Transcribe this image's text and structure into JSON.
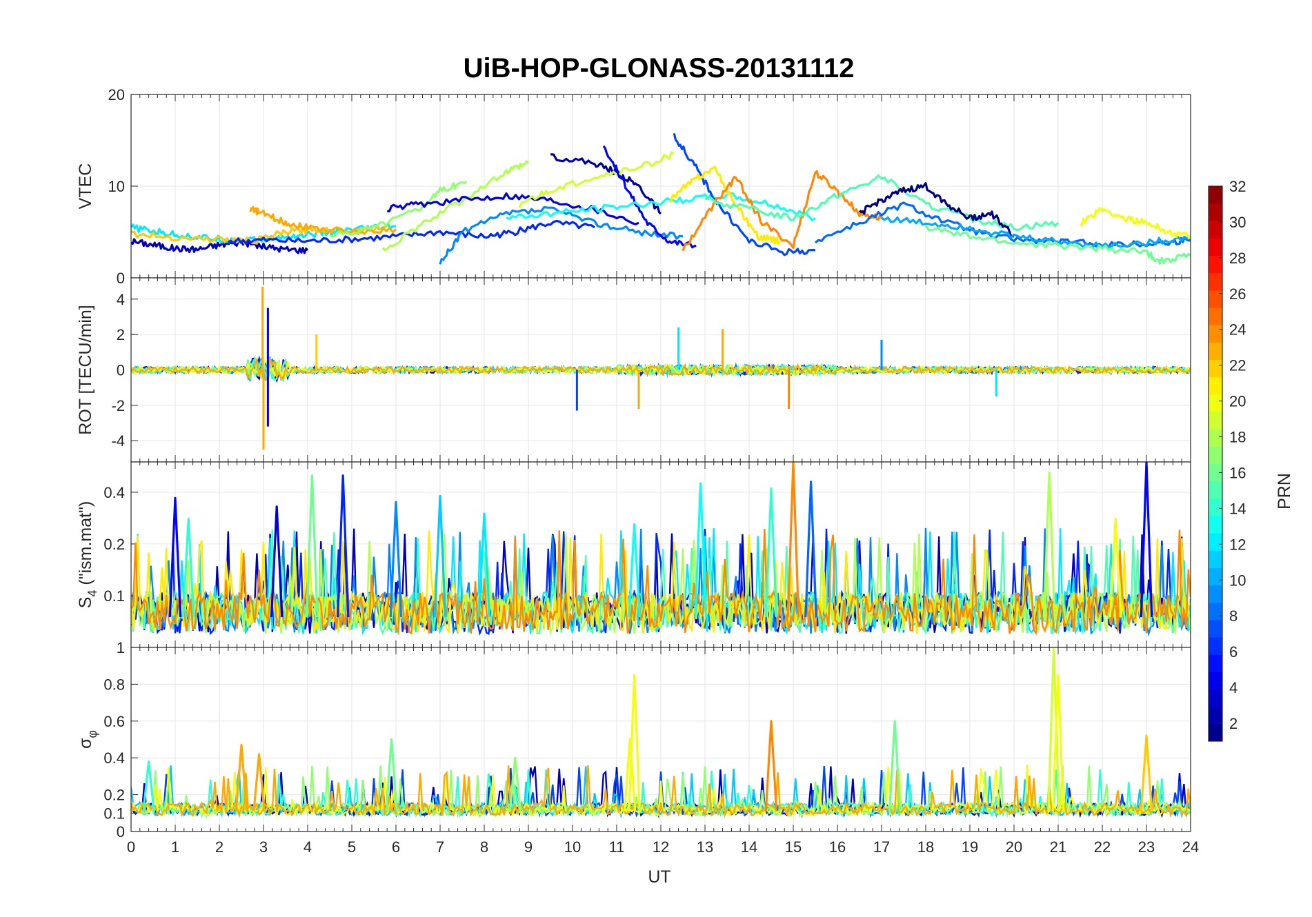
{
  "title": "UiB-HOP-GLONASS-20131112",
  "xlabel": "UT",
  "colorbar": {
    "label": "PRN",
    "colormap": "jet",
    "range": [
      1,
      32
    ],
    "tick_labels": [
      "2",
      "4",
      "6",
      "8",
      "10",
      "12",
      "14",
      "16",
      "18",
      "20",
      "22",
      "24",
      "26",
      "28",
      "30",
      "32"
    ]
  },
  "colors": {
    "axes": "#262626",
    "grid": "#e6e6e6",
    "background": "#ffffff"
  },
  "chart_data": [
    {
      "type": "line",
      "ylabel": "VTEC",
      "xlim": [
        0,
        24
      ],
      "ylim": [
        0,
        20
      ],
      "y_tick_labels": [
        "0",
        "10",
        "20"
      ],
      "x_tick_labels": [],
      "grid": true,
      "series": [
        {
          "prn": 3,
          "x": [
            0,
            0.5,
            1,
            1.5,
            2,
            2.5,
            3,
            3.5,
            4
          ],
          "y": [
            4,
            3.6,
            3.2,
            3.1,
            3.6,
            3.9,
            3.4,
            3.1,
            3.0
          ]
        },
        {
          "prn": 12,
          "x": [
            0,
            0.6,
            1.2,
            1.8,
            2.4,
            3,
            3.6,
            4.2,
            4.8,
            5.4,
            6
          ],
          "y": [
            5.5,
            5.0,
            4.6,
            4.3,
            4.1,
            4.2,
            4.5,
            4.8,
            5.1,
            5.4,
            5.6
          ]
        },
        {
          "prn": 22,
          "x": [
            0,
            1,
            2,
            2.8,
            3.5,
            4.2,
            5,
            5.8
          ],
          "y": [
            4.8,
            4.4,
            4.2,
            4.0,
            5.0,
            5.3,
            5.2,
            5.6
          ]
        },
        {
          "prn": 23,
          "x": [
            2.7,
            3,
            3.5,
            4,
            5,
            6
          ],
          "y": [
            7.5,
            7.0,
            6.0,
            5.5,
            5.0,
            5.3
          ]
        },
        {
          "prn": 6,
          "x": [
            2.2,
            3,
            4,
            5,
            6,
            7,
            8,
            8.7,
            9.5,
            10.5
          ],
          "y": [
            4.0,
            4.1,
            4.0,
            4.2,
            4.5,
            5.0,
            4.5,
            5.0,
            6.0,
            5.5
          ]
        },
        {
          "prn": 17,
          "x": [
            4.5,
            5.5,
            6.5,
            7,
            7.6
          ],
          "y": [
            4.5,
            5.5,
            7.5,
            9.5,
            10.5
          ]
        },
        {
          "prn": 18,
          "x": [
            5.7,
            6.5,
            7.5,
            8.5,
            9
          ],
          "y": [
            3.0,
            5.5,
            8.5,
            11.5,
            12.5
          ]
        },
        {
          "prn": 4,
          "x": [
            5.8,
            6.5,
            7.5,
            8.5,
            9.5,
            10.5,
            11.5
          ],
          "y": [
            7.5,
            8.0,
            8.5,
            9.0,
            8.5,
            7.5,
            6.0
          ]
        },
        {
          "prn": 9,
          "x": [
            7,
            7.5,
            8.5,
            9.5,
            10.5,
            11.5,
            12.5
          ],
          "y": [
            1.5,
            5.0,
            7.0,
            7.5,
            6.0,
            5.0,
            4.5
          ]
        },
        {
          "prn": 2,
          "x": [
            9.5,
            10.5,
            11,
            11.5,
            12
          ],
          "y": [
            13.3,
            12.5,
            11.5,
            10.0,
            7.0
          ]
        },
        {
          "prn": 19,
          "x": [
            8.8,
            9.5,
            10.5,
            11.5,
            12.3
          ],
          "y": [
            8.0,
            9.5,
            11.0,
            12.0,
            13.5
          ]
        },
        {
          "prn": 5,
          "x": [
            10.7,
            11.2,
            11.7,
            12.2,
            12.8
          ],
          "y": [
            14.5,
            10.0,
            6.0,
            4.0,
            3.5
          ]
        },
        {
          "prn": 13,
          "x": [
            8.5,
            9.5,
            10.5,
            11.5,
            12.5,
            13.5,
            14.5,
            15.5
          ],
          "y": [
            6.5,
            7.0,
            7.5,
            8.0,
            8.5,
            9.0,
            8.0,
            6.5
          ]
        },
        {
          "prn": 7,
          "x": [
            12.3,
            12.8,
            13.3,
            14,
            14.8,
            15.5
          ],
          "y": [
            15.5,
            12.0,
            8.0,
            4.0,
            2.8,
            3.0
          ]
        },
        {
          "prn": 21,
          "x": [
            12.2,
            12.7,
            13.2,
            13.7,
            14.2,
            14.7
          ],
          "y": [
            8.5,
            10.5,
            12.0,
            8.0,
            4.5,
            4.0
          ]
        },
        {
          "prn": 24,
          "x": [
            12.5,
            13.2,
            13.7,
            14.3,
            15,
            15.5,
            16,
            16.5,
            17
          ],
          "y": [
            3.0,
            8.0,
            11.0,
            6.0,
            3.5,
            11.5,
            9.5,
            7.0,
            6.5
          ]
        },
        {
          "prn": 15,
          "x": [
            13,
            14,
            15,
            16,
            17,
            18,
            19,
            20,
            21
          ],
          "y": [
            8.5,
            7.5,
            6.5,
            9.0,
            11.0,
            8.0,
            6.5,
            5.5,
            6.0
          ]
        },
        {
          "prn": 1,
          "x": [
            16.5,
            17,
            17.5,
            18,
            18.5,
            19,
            19.5,
            20
          ],
          "y": [
            7.0,
            8.5,
            9.5,
            10.0,
            8.0,
            6.5,
            7.0,
            4.5
          ]
        },
        {
          "prn": 8,
          "x": [
            15.5,
            16.5,
            17.5,
            18.5,
            19.5,
            20.5,
            21.5,
            22.5,
            23.5,
            24
          ],
          "y": [
            4.0,
            6.0,
            8.0,
            6.0,
            4.5,
            4.0,
            3.8,
            3.6,
            3.8,
            4.2
          ]
        },
        {
          "prn": 10,
          "x": [
            17,
            18,
            19,
            20,
            21,
            22,
            23,
            24
          ],
          "y": [
            6.5,
            6.0,
            5.5,
            4.5,
            4.0,
            3.5,
            3.8,
            4.5
          ]
        },
        {
          "prn": 16,
          "x": [
            18,
            19,
            20,
            21,
            22,
            23,
            23.3,
            24
          ],
          "y": [
            5.5,
            4.5,
            3.8,
            3.5,
            3.2,
            2.8,
            1.8,
            2.5
          ]
        },
        {
          "prn": 20,
          "x": [
            21.5,
            22,
            22.5,
            23,
            23.5,
            24
          ],
          "y": [
            6.0,
            7.5,
            6.5,
            6.0,
            5.0,
            4.5
          ]
        }
      ]
    },
    {
      "type": "line",
      "ylabel": "ROT [TECU/min]",
      "xlim": [
        0,
        24
      ],
      "ylim": [
        -5.2,
        5.2
      ],
      "y_tick_labels": [
        "-4",
        "-2",
        "0",
        "2",
        "4"
      ],
      "x_tick_labels": [],
      "grid": true,
      "baseline": 0,
      "spikes": [
        {
          "prn": 23,
          "x": 2.98,
          "y": 4.7
        },
        {
          "prn": 23,
          "x": 3.0,
          "y": -4.5
        },
        {
          "prn": 4,
          "x": 3.1,
          "y": 3.5
        },
        {
          "prn": 4,
          "x": 3.1,
          "y": -3.2
        },
        {
          "prn": 22,
          "x": 4.2,
          "y": 2.0
        },
        {
          "prn": 7,
          "x": 10.1,
          "y": -2.3
        },
        {
          "prn": 12,
          "x": 12.4,
          "y": 2.4
        },
        {
          "prn": 23,
          "x": 13.4,
          "y": 2.3
        },
        {
          "prn": 23,
          "x": 11.5,
          "y": -2.2
        },
        {
          "prn": 24,
          "x": 14.9,
          "y": -2.2
        },
        {
          "prn": 9,
          "x": 17.0,
          "y": 1.7
        },
        {
          "prn": 12,
          "x": 19.6,
          "y": -1.5
        }
      ]
    },
    {
      "type": "line",
      "ylabel": "S4 (\"ism.mat\")",
      "ylabel_main": "S",
      "ylabel_sub": "4",
      "ylabel_rest": " (\"ism.mat\")",
      "xlim": [
        0,
        24
      ],
      "ylim": [
        0.05,
        0.6
      ],
      "y_scale": "log",
      "y_tick_values": [
        0.1,
        0.2,
        0.4
      ],
      "y_tick_labels": [
        "0.1",
        "0.2",
        "0.4"
      ],
      "x_tick_labels": [],
      "grid": true,
      "peaks": [
        {
          "prn": 5,
          "x": 1.0,
          "y": 0.37
        },
        {
          "prn": 14,
          "x": 1.3,
          "y": 0.28
        },
        {
          "prn": 4,
          "x": 3.3,
          "y": 0.33
        },
        {
          "prn": 16,
          "x": 4.1,
          "y": 0.5
        },
        {
          "prn": 6,
          "x": 4.8,
          "y": 0.5
        },
        {
          "prn": 9,
          "x": 6.0,
          "y": 0.35
        },
        {
          "prn": 11,
          "x": 7.0,
          "y": 0.38
        },
        {
          "prn": 12,
          "x": 8.0,
          "y": 0.3
        },
        {
          "prn": 13,
          "x": 11.4,
          "y": 0.26
        },
        {
          "prn": 13,
          "x": 12.9,
          "y": 0.45
        },
        {
          "prn": 14,
          "x": 14.5,
          "y": 0.42
        },
        {
          "prn": 24,
          "x": 15.0,
          "y": 0.6
        },
        {
          "prn": 8,
          "x": 15.4,
          "y": 0.46
        },
        {
          "prn": 18,
          "x": 20.8,
          "y": 0.52
        },
        {
          "prn": 5,
          "x": 23.0,
          "y": 0.6
        },
        {
          "prn": 20,
          "x": 22.3,
          "y": 0.28
        }
      ]
    },
    {
      "type": "line",
      "ylabel": "σφ",
      "ylabel_main": "σ",
      "ylabel_sub": "φ",
      "xlim": [
        0,
        24
      ],
      "ylim": [
        0,
        1
      ],
      "y_tick_labels": [
        "0",
        "0.1",
        "0.2",
        "0.4",
        "0.6",
        "0.8",
        "1"
      ],
      "y_tick_values": [
        0,
        0.1,
        0.2,
        0.4,
        0.6,
        0.8,
        1
      ],
      "x_tick_labels": [
        "0",
        "1",
        "2",
        "3",
        "4",
        "5",
        "6",
        "7",
        "8",
        "9",
        "10",
        "11",
        "12",
        "13",
        "14",
        "15",
        "16",
        "17",
        "18",
        "19",
        "20",
        "21",
        "22",
        "23",
        "24"
      ],
      "grid": true,
      "peaks": [
        {
          "prn": 14,
          "x": 0.4,
          "y": 0.38
        },
        {
          "prn": 23,
          "x": 2.5,
          "y": 0.47
        },
        {
          "prn": 23,
          "x": 2.9,
          "y": 0.42
        },
        {
          "prn": 16,
          "x": 5.9,
          "y": 0.5
        },
        {
          "prn": 17,
          "x": 8.7,
          "y": 0.4
        },
        {
          "prn": 20,
          "x": 11.3,
          "y": 0.5
        },
        {
          "prn": 20,
          "x": 11.4,
          "y": 0.85
        },
        {
          "prn": 24,
          "x": 14.5,
          "y": 0.6
        },
        {
          "prn": 16,
          "x": 17.3,
          "y": 0.6
        },
        {
          "prn": 19,
          "x": 20.9,
          "y": 1.0
        },
        {
          "prn": 20,
          "x": 21.0,
          "y": 0.85
        },
        {
          "prn": 22,
          "x": 23.0,
          "y": 0.52
        }
      ]
    }
  ]
}
